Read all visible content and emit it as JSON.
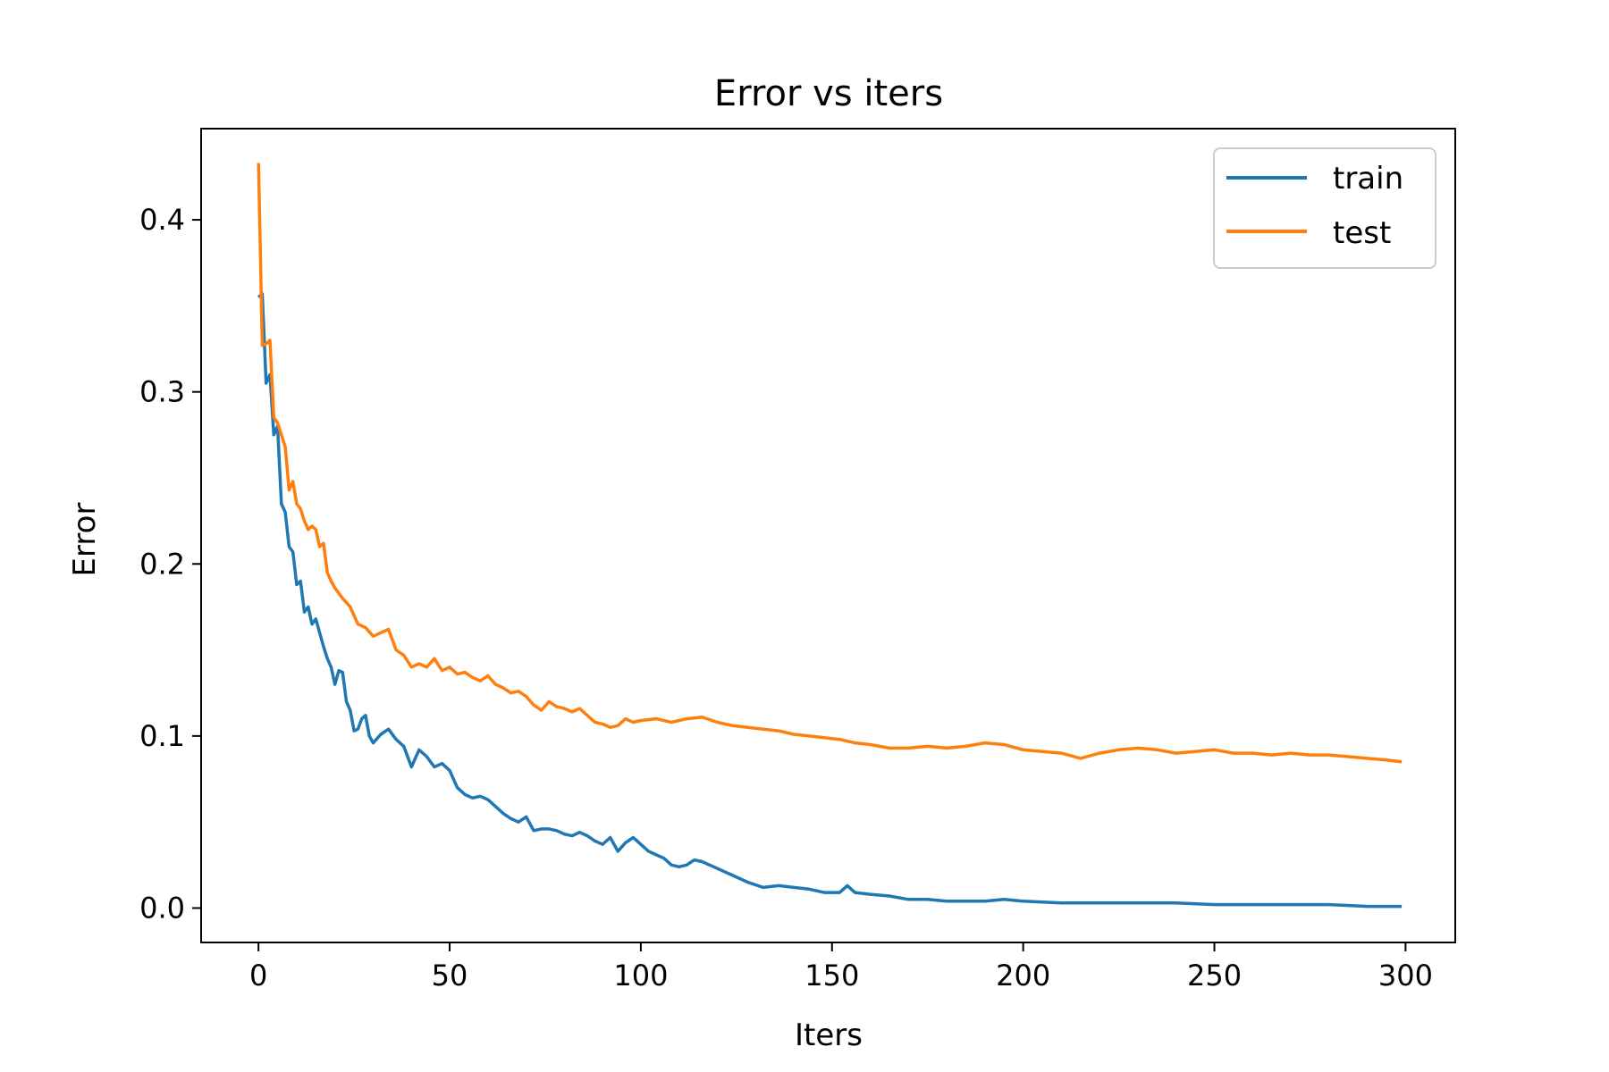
{
  "chart_data": {
    "type": "line",
    "title": "Error vs iters",
    "xlabel": "Iters",
    "ylabel": "Error",
    "xlim": [
      -15,
      313
    ],
    "ylim": [
      -0.02,
      0.453
    ],
    "xticks": [
      0,
      50,
      100,
      150,
      200,
      250,
      300
    ],
    "xtick_labels": [
      "0",
      "50",
      "100",
      "150",
      "200",
      "250",
      "300"
    ],
    "yticks": [
      0.0,
      0.1,
      0.2,
      0.3,
      0.4
    ],
    "ytick_labels": [
      "0.0",
      "0.1",
      "0.2",
      "0.3",
      "0.4"
    ],
    "grid": false,
    "legend_position": "top-right",
    "colors": {
      "train": "#1f77b4",
      "test": "#ff7f0e"
    },
    "series": [
      {
        "name": "train",
        "color": "#1f77b4",
        "x": [
          0,
          1,
          2,
          3,
          4,
          5,
          6,
          7,
          8,
          9,
          10,
          11,
          12,
          13,
          14,
          15,
          16,
          17,
          18,
          19,
          20,
          21,
          22,
          23,
          24,
          25,
          26,
          27,
          28,
          29,
          30,
          32,
          34,
          36,
          38,
          40,
          42,
          44,
          46,
          48,
          50,
          52,
          54,
          56,
          58,
          60,
          62,
          64,
          66,
          68,
          70,
          72,
          74,
          76,
          78,
          80,
          82,
          84,
          86,
          88,
          90,
          92,
          94,
          96,
          98,
          100,
          102,
          104,
          106,
          108,
          110,
          112,
          114,
          116,
          118,
          120,
          124,
          128,
          132,
          136,
          140,
          144,
          148,
          152,
          154,
          156,
          160,
          165,
          170,
          175,
          180,
          185,
          190,
          195,
          200,
          210,
          220,
          230,
          240,
          250,
          260,
          270,
          280,
          290,
          299
        ],
        "y": [
          0.355,
          0.357,
          0.305,
          0.31,
          0.275,
          0.28,
          0.235,
          0.23,
          0.21,
          0.207,
          0.188,
          0.19,
          0.172,
          0.175,
          0.165,
          0.168,
          0.16,
          0.152,
          0.145,
          0.14,
          0.13,
          0.138,
          0.137,
          0.12,
          0.115,
          0.103,
          0.104,
          0.11,
          0.112,
          0.1,
          0.096,
          0.101,
          0.104,
          0.098,
          0.094,
          0.082,
          0.092,
          0.088,
          0.082,
          0.084,
          0.08,
          0.07,
          0.066,
          0.064,
          0.065,
          0.063,
          0.059,
          0.055,
          0.052,
          0.05,
          0.053,
          0.045,
          0.046,
          0.046,
          0.045,
          0.043,
          0.042,
          0.044,
          0.042,
          0.039,
          0.037,
          0.041,
          0.033,
          0.038,
          0.041,
          0.037,
          0.033,
          0.031,
          0.029,
          0.025,
          0.024,
          0.025,
          0.028,
          0.027,
          0.025,
          0.023,
          0.019,
          0.015,
          0.012,
          0.013,
          0.012,
          0.011,
          0.009,
          0.009,
          0.013,
          0.009,
          0.008,
          0.007,
          0.005,
          0.005,
          0.004,
          0.004,
          0.004,
          0.005,
          0.004,
          0.003,
          0.003,
          0.003,
          0.003,
          0.002,
          0.002,
          0.002,
          0.002,
          0.001,
          0.001
        ]
      },
      {
        "name": "test",
        "color": "#ff7f0e",
        "x": [
          0,
          1,
          2,
          3,
          4,
          5,
          6,
          7,
          8,
          9,
          10,
          11,
          12,
          13,
          14,
          15,
          16,
          17,
          18,
          19,
          20,
          22,
          24,
          26,
          28,
          30,
          32,
          34,
          36,
          38,
          40,
          42,
          44,
          46,
          48,
          50,
          52,
          54,
          56,
          58,
          60,
          62,
          64,
          66,
          68,
          70,
          72,
          74,
          76,
          78,
          80,
          82,
          84,
          86,
          88,
          90,
          92,
          94,
          96,
          98,
          100,
          104,
          108,
          112,
          116,
          120,
          124,
          128,
          132,
          136,
          140,
          144,
          148,
          152,
          156,
          160,
          165,
          170,
          175,
          180,
          185,
          190,
          195,
          200,
          205,
          210,
          215,
          220,
          225,
          230,
          235,
          240,
          245,
          250,
          255,
          260,
          265,
          270,
          275,
          280,
          285,
          290,
          295,
          299
        ],
        "y": [
          0.433,
          0.327,
          0.328,
          0.33,
          0.285,
          0.282,
          0.275,
          0.268,
          0.243,
          0.248,
          0.235,
          0.232,
          0.225,
          0.22,
          0.222,
          0.22,
          0.21,
          0.212,
          0.195,
          0.19,
          0.186,
          0.18,
          0.175,
          0.165,
          0.163,
          0.158,
          0.16,
          0.162,
          0.15,
          0.147,
          0.14,
          0.142,
          0.14,
          0.145,
          0.138,
          0.14,
          0.136,
          0.137,
          0.134,
          0.132,
          0.135,
          0.13,
          0.128,
          0.125,
          0.126,
          0.123,
          0.118,
          0.115,
          0.12,
          0.117,
          0.116,
          0.114,
          0.116,
          0.112,
          0.108,
          0.107,
          0.105,
          0.106,
          0.11,
          0.108,
          0.109,
          0.11,
          0.108,
          0.11,
          0.111,
          0.108,
          0.106,
          0.105,
          0.104,
          0.103,
          0.101,
          0.1,
          0.099,
          0.098,
          0.096,
          0.095,
          0.093,
          0.093,
          0.094,
          0.093,
          0.094,
          0.096,
          0.095,
          0.092,
          0.091,
          0.09,
          0.087,
          0.09,
          0.092,
          0.093,
          0.092,
          0.09,
          0.091,
          0.092,
          0.09,
          0.09,
          0.089,
          0.09,
          0.089,
          0.089,
          0.088,
          0.087,
          0.086,
          0.085
        ]
      }
    ]
  }
}
